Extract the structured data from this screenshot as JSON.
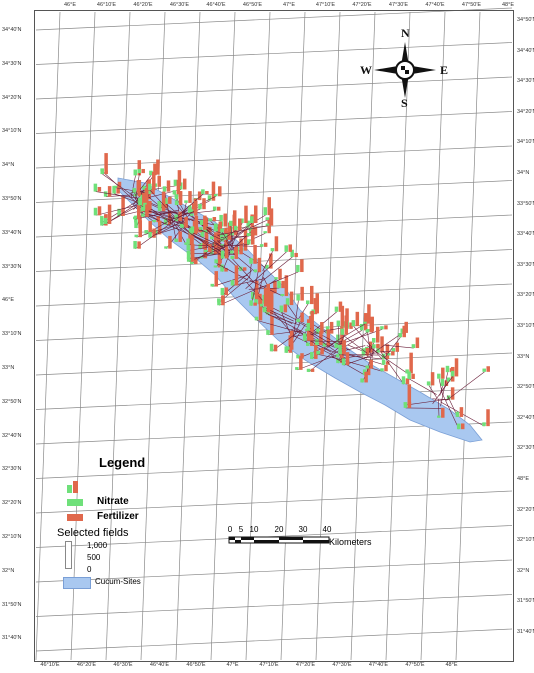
{
  "lon_ticks_top": [
    "46°E",
    "46°10'E",
    "46°20'E",
    "46°30'E",
    "46°40'E",
    "46°50'E",
    "47°E",
    "47°10'E",
    "47°20'E",
    "47°30'E",
    "47°40'E",
    "47°50'E",
    "48°E"
  ],
  "lon_ticks_bottom": [
    "46°10'E",
    "46°20'E",
    "46°30'E",
    "46°40'E",
    "46°50'E",
    "47°E",
    "47°10'E",
    "47°20'E",
    "47°30'E",
    "47°40'E",
    "47°50'E",
    "48°E"
  ],
  "lat_ticks_left": [
    "34°40'N",
    "34°30'N",
    "34°20'N",
    "34°10'N",
    "34°N",
    "33°50'N",
    "33°40'N",
    "33°30'N",
    "46°E",
    "33°10'N",
    "33°N",
    "32°50'N",
    "32°40'N",
    "32°30'N",
    "32°20'N",
    "32°10'N",
    "32°N",
    "31°50'N",
    "31°40'N"
  ],
  "lat_ticks_right": [
    "34°50'N",
    "34°40'N",
    "34°30'N",
    "34°20'N",
    "34°10'N",
    "34°N",
    "33°50'N",
    "33°40'N",
    "33°30'N",
    "33°20'N",
    "33°10'N",
    "33°N",
    "32°50'N",
    "32°40'N",
    "32°30'N",
    "48°E",
    "32°20'N",
    "32°10'N",
    "32°N",
    "31°50'N",
    "31°40'N"
  ],
  "compass": {
    "n": "N",
    "s": "S",
    "e": "E",
    "w": "W"
  },
  "legend": {
    "title": "Legend",
    "items": [
      {
        "label": "Nitrate",
        "color": "#6fe07a"
      },
      {
        "label": "Fertilizer",
        "color": "#e0684c"
      }
    ],
    "selected_fields_label": "Selected fields",
    "size_values": [
      "1,000",
      "500",
      "0"
    ],
    "area_label": "Cucum-Sites",
    "area_color": "#a9c8f0"
  },
  "scale_bar": {
    "ticks": [
      "0",
      "5",
      "10",
      "20",
      "30",
      "40"
    ],
    "unit": "Kilometers"
  }
}
